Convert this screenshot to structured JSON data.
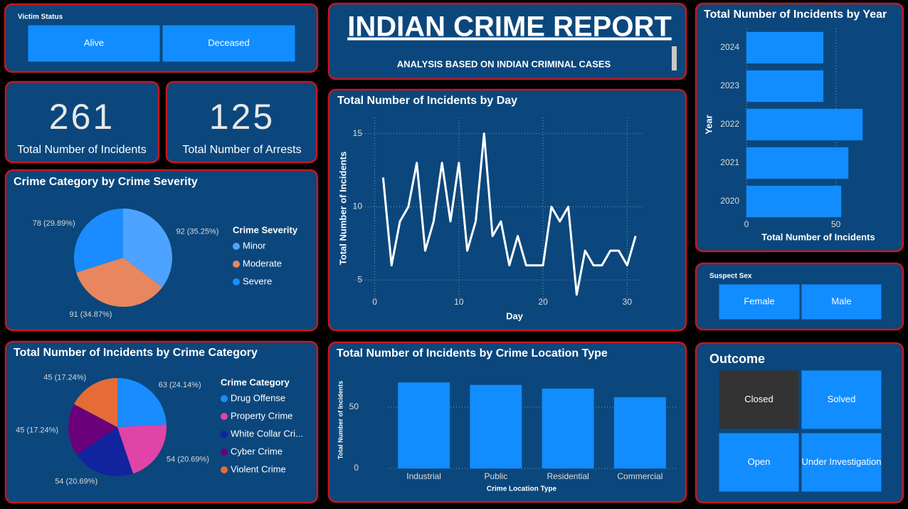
{
  "header": {
    "title": "INDIAN CRIME REPORT",
    "subtitle": "ANALYSIS BASED ON INDIAN CRIMINAL CASES"
  },
  "cards": [
    {
      "value": 261,
      "label": "Total Number of Incidents"
    },
    {
      "value": 125,
      "label": "Total Number of Arrests"
    }
  ],
  "slicers": [
    {
      "title": "Victim Status",
      "options": [
        "Alive",
        "Deceased"
      ]
    },
    {
      "title": "Suspect Sex",
      "options": [
        "Female",
        "Male"
      ]
    },
    {
      "title": "Outcome",
      "options": [
        "Closed",
        "Solved",
        "Open",
        "Under Investigation"
      ],
      "selected": 0
    }
  ],
  "chart_data": [
    {
      "type": "pie",
      "title": "Crime Category by Crime Severity",
      "legend_title": "Crime Severity",
      "categories": [
        "Minor",
        "Moderate",
        "Severe"
      ],
      "values": [
        92,
        91,
        78
      ],
      "value_labels": [
        "92 (35.25%)",
        "91 (34.87%)",
        "78 (29.89%)"
      ],
      "colors": [
        "#4da3ff",
        "#e8875f",
        "#1a8cff"
      ]
    },
    {
      "type": "pie",
      "title": "Total Number of Incidents by Crime Category",
      "legend_title": "Crime Category",
      "categories": [
        "Drug Offense",
        "Property Crime",
        "White Collar Cri...",
        "Cyber Crime",
        "Violent Crime"
      ],
      "values": [
        63,
        54,
        54,
        45,
        45
      ],
      "value_labels": [
        "63 (24.14%)",
        "54 (20.69%)",
        "54 (20.69%)",
        "45 (17.24%)",
        "45 (17.24%)"
      ],
      "colors": [
        "#1a8cff",
        "#e044a7",
        "#12239e",
        "#6b007b",
        "#e66c37"
      ]
    },
    {
      "type": "line",
      "title": "Total Number of Incidents by Day",
      "x_label": "Day",
      "y_label": "Total Number of Incidents",
      "x": [
        1,
        2,
        3,
        4,
        5,
        6,
        7,
        8,
        9,
        10,
        11,
        12,
        13,
        14,
        15,
        16,
        17,
        18,
        19,
        20,
        21,
        22,
        23,
        24,
        25,
        26,
        27,
        28,
        29,
        30,
        31
      ],
      "values": [
        12,
        6,
        9,
        10,
        13,
        7,
        9,
        13,
        9,
        13,
        7,
        9,
        15,
        8,
        9,
        6,
        8,
        6,
        6,
        6,
        10,
        9,
        10,
        4,
        7,
        6,
        6,
        7,
        7,
        6,
        8
      ],
      "color": "#ffffff",
      "xlim": [
        -2.5,
        32
      ],
      "ylim": [
        3.7,
        16.1
      ],
      "xticks": [
        0,
        10,
        20,
        30
      ],
      "yticks": [
        5,
        10,
        15
      ],
      "grid": true
    },
    {
      "type": "bar",
      "orientation": "horizontal",
      "title": "Total Number of Incidents by Year",
      "x_label": "Total Number of Incidents",
      "y_label": "Year",
      "categories": [
        "2024",
        "2023",
        "2022",
        "2021",
        "2020"
      ],
      "values": [
        43,
        43,
        65,
        57,
        53
      ],
      "color": "#118dff",
      "xlim": [
        0,
        80
      ],
      "xticks": [
        0,
        50
      ],
      "grid": true
    },
    {
      "type": "bar",
      "orientation": "vertical",
      "title": "Total Number of Incidents by Crime Location Type",
      "x_label": "Crime Location Type",
      "y_label": "Total Number of Incidents",
      "categories": [
        "Industrial",
        "Public",
        "Residential",
        "Commercial"
      ],
      "values": [
        70,
        68,
        65,
        58
      ],
      "color": "#118dff",
      "ylim": [
        0,
        80
      ],
      "yticks": [
        0,
        50
      ],
      "grid": true
    }
  ]
}
